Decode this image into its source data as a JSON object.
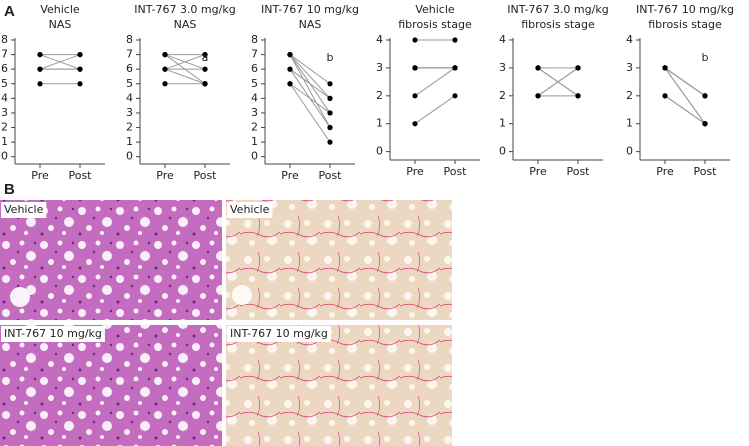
{
  "panel_labels": {
    "a": "A",
    "b": "B"
  },
  "chart_data": [
    {
      "type": "paired",
      "title": "Vehicle",
      "subtitle": "NAS",
      "categories": [
        "Pre",
        "Post"
      ],
      "ylim": [
        -0.5,
        8
      ],
      "yticks": [
        0,
        1,
        2,
        3,
        4,
        5,
        6,
        7,
        8
      ],
      "series": [
        {
          "values": [
            7,
            7
          ]
        },
        {
          "values": [
            7,
            6
          ]
        },
        {
          "values": [
            6,
            7
          ]
        },
        {
          "values": [
            6,
            6
          ]
        },
        {
          "values": [
            6,
            6
          ]
        },
        {
          "values": [
            5,
            5
          ]
        }
      ]
    },
    {
      "type": "paired",
      "title": "INT-767 3.0 mg/kg",
      "subtitle": "NAS",
      "annotation": "a",
      "categories": [
        "Pre",
        "Post"
      ],
      "ylim": [
        -0.5,
        8
      ],
      "yticks": [
        0,
        1,
        2,
        3,
        4,
        5,
        6,
        7,
        8
      ],
      "series": [
        {
          "values": [
            7,
            7
          ]
        },
        {
          "values": [
            7,
            6
          ]
        },
        {
          "values": [
            7,
            5
          ]
        },
        {
          "values": [
            6,
            7
          ]
        },
        {
          "values": [
            6,
            6
          ]
        },
        {
          "values": [
            6,
            5
          ]
        },
        {
          "values": [
            5,
            5
          ]
        }
      ]
    },
    {
      "type": "paired",
      "title": "INT-767 10 mg/kg",
      "subtitle": "NAS",
      "annotation": "b",
      "categories": [
        "Pre",
        "Post"
      ],
      "ylim": [
        -0.5,
        8
      ],
      "yticks": [
        0,
        1,
        2,
        3,
        4,
        5,
        6,
        7,
        8
      ],
      "series": [
        {
          "values": [
            7,
            5
          ]
        },
        {
          "values": [
            7,
            4
          ]
        },
        {
          "values": [
            7,
            3
          ]
        },
        {
          "values": [
            7,
            2
          ]
        },
        {
          "values": [
            6,
            4
          ]
        },
        {
          "values": [
            6,
            2
          ]
        },
        {
          "values": [
            5,
            3
          ]
        },
        {
          "values": [
            5,
            1
          ]
        }
      ]
    },
    {
      "type": "paired",
      "title": "Vehicle",
      "subtitle": "fibrosis stage",
      "categories": [
        "Pre",
        "Post"
      ],
      "ylim": [
        -0.3,
        4
      ],
      "yticks": [
        0,
        1,
        2,
        3,
        4
      ],
      "series": [
        {
          "values": [
            4,
            4
          ]
        },
        {
          "values": [
            3,
            3
          ]
        },
        {
          "values": [
            3,
            3
          ]
        },
        {
          "values": [
            3,
            3
          ]
        },
        {
          "values": [
            3,
            3
          ]
        },
        {
          "values": [
            2,
            3
          ]
        },
        {
          "values": [
            1,
            2
          ]
        }
      ]
    },
    {
      "type": "paired",
      "title": "INT-767 3.0 mg/kg",
      "subtitle": "fibrosis stage",
      "categories": [
        "Pre",
        "Post"
      ],
      "ylim": [
        -0.3,
        4
      ],
      "yticks": [
        0,
        1,
        2,
        3,
        4
      ],
      "series": [
        {
          "values": [
            3,
            3
          ]
        },
        {
          "values": [
            3,
            2
          ]
        },
        {
          "values": [
            3,
            2
          ]
        },
        {
          "values": [
            2,
            3
          ]
        },
        {
          "values": [
            2,
            3
          ]
        },
        {
          "values": [
            2,
            2
          ]
        }
      ]
    },
    {
      "type": "paired",
      "title": "INT-767 10 mg/kg",
      "subtitle": "fibrosis stage",
      "annotation": "b",
      "categories": [
        "Pre",
        "Post"
      ],
      "ylim": [
        -0.3,
        4
      ],
      "yticks": [
        0,
        1,
        2,
        3,
        4
      ],
      "series": [
        {
          "values": [
            3,
            2
          ]
        },
        {
          "values": [
            3,
            2
          ]
        },
        {
          "values": [
            3,
            2
          ]
        },
        {
          "values": [
            3,
            1
          ]
        },
        {
          "values": [
            3,
            1
          ]
        },
        {
          "values": [
            2,
            1
          ]
        },
        {
          "values": [
            2,
            1
          ]
        }
      ]
    }
  ],
  "images": [
    {
      "label": "Vehicle"
    },
    {
      "label": "Vehicle"
    },
    {
      "label": "INT-767 10 mg/kg"
    },
    {
      "label": "INT-767 10 mg/kg"
    }
  ]
}
